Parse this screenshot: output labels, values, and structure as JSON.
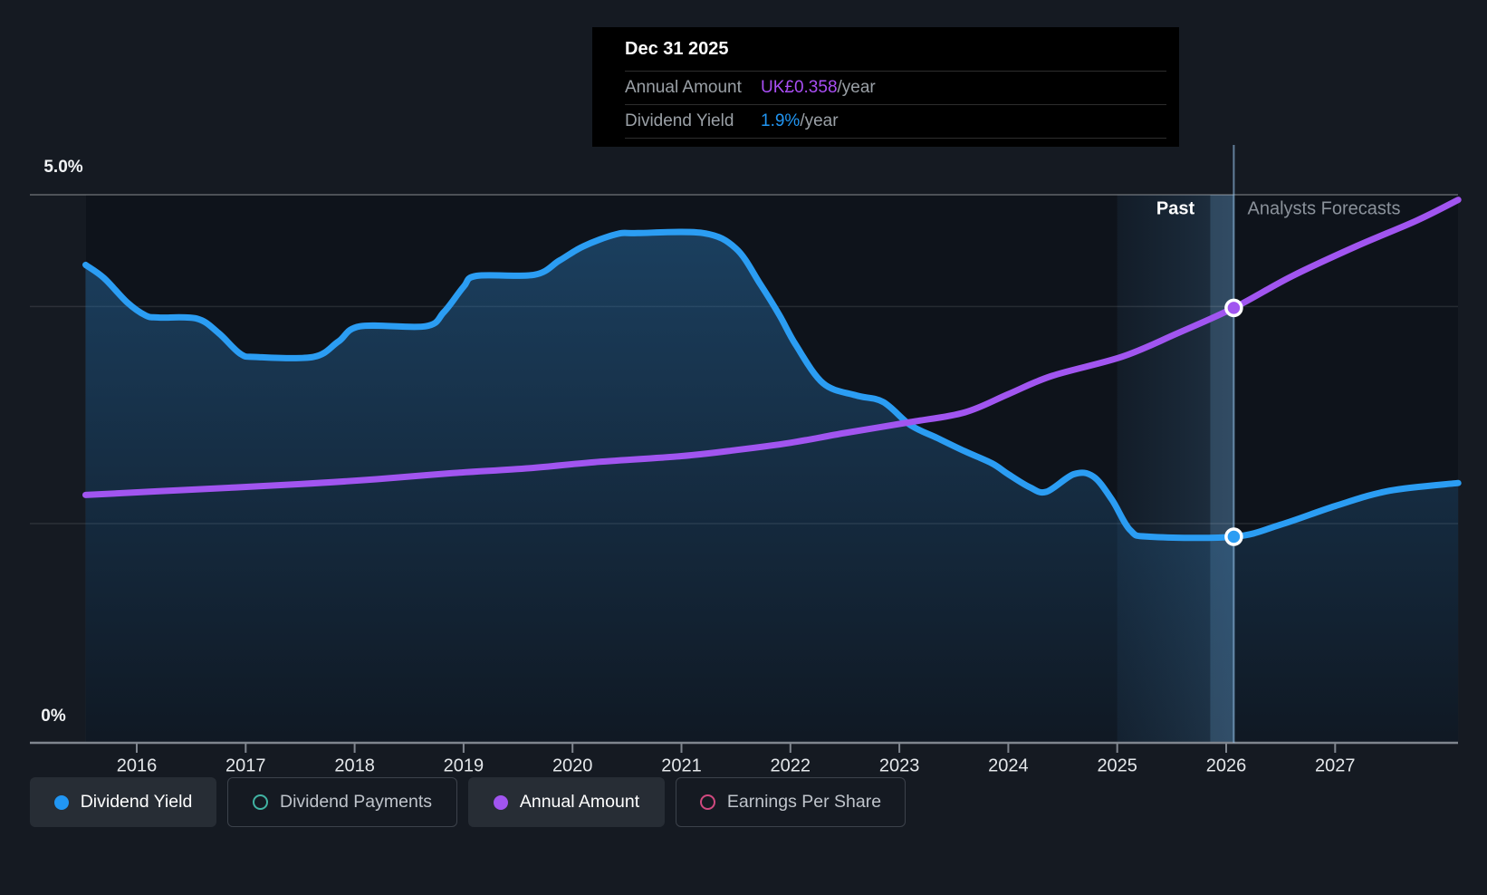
{
  "header": {
    "past_label": "Past",
    "forecast_label": "Analysts Forecasts"
  },
  "y_axis": {
    "top": "5.0%",
    "bottom": "0%"
  },
  "tooltip": {
    "date": "Dec 31 2025",
    "rows": [
      {
        "label": "Annual Amount",
        "value": "UK£0.358",
        "suffix": "/year",
        "color": "#a94ef5"
      },
      {
        "label": "Dividend Yield",
        "value": "1.9%",
        "suffix": "/year",
        "color": "#2196f3"
      }
    ]
  },
  "legend": [
    {
      "label": "Dividend Yield",
      "marker": "filled",
      "color": "#2196f3",
      "active": true
    },
    {
      "label": "Dividend Payments",
      "marker": "outline",
      "color": "#41b3a3",
      "active": false
    },
    {
      "label": "Annual Amount",
      "marker": "filled",
      "color": "#a155f0",
      "active": true
    },
    {
      "label": "Earnings Per Share",
      "marker": "outline",
      "color": "#d0497f",
      "active": false
    }
  ],
  "chart_data": {
    "type": "line",
    "x_ticks": [
      2016,
      2017,
      2018,
      2019,
      2020,
      2021,
      2022,
      2023,
      2024,
      2025,
      2026,
      2027
    ],
    "x_range": [
      2015.53,
      2028.13
    ],
    "ylim_percent": [
      0,
      5
    ],
    "y_axis_labels": [
      "0%",
      "5.0%"
    ],
    "gridlines_percent": [
      5.0,
      3.98,
      2.0
    ],
    "past_band": [
      2025.0,
      2026.07
    ],
    "divider_x": 2026.07,
    "legend_position": "bottom",
    "series": [
      {
        "name": "Dividend Yield",
        "unit": "%",
        "color": "#2b9df3",
        "area": true,
        "points": [
          [
            2015.53,
            4.36
          ],
          [
            2015.7,
            4.24
          ],
          [
            2015.91,
            4.02
          ],
          [
            2016.08,
            3.9
          ],
          [
            2016.2,
            3.88
          ],
          [
            2016.55,
            3.87
          ],
          [
            2016.75,
            3.74
          ],
          [
            2016.95,
            3.55
          ],
          [
            2017.1,
            3.52
          ],
          [
            2017.62,
            3.52
          ],
          [
            2017.85,
            3.66
          ],
          [
            2018.05,
            3.8
          ],
          [
            2018.65,
            3.8
          ],
          [
            2018.82,
            3.93
          ],
          [
            2019.0,
            4.16
          ],
          [
            2019.12,
            4.26
          ],
          [
            2019.65,
            4.27
          ],
          [
            2019.88,
            4.4
          ],
          [
            2020.1,
            4.53
          ],
          [
            2020.4,
            4.64
          ],
          [
            2020.6,
            4.65
          ],
          [
            2021.2,
            4.65
          ],
          [
            2021.5,
            4.51
          ],
          [
            2021.72,
            4.19
          ],
          [
            2021.9,
            3.9
          ],
          [
            2022.05,
            3.63
          ],
          [
            2022.3,
            3.28
          ],
          [
            2022.6,
            3.17
          ],
          [
            2022.85,
            3.11
          ],
          [
            2023.1,
            2.9
          ],
          [
            2023.35,
            2.78
          ],
          [
            2023.6,
            2.66
          ],
          [
            2023.85,
            2.55
          ],
          [
            2024.0,
            2.45
          ],
          [
            2024.2,
            2.33
          ],
          [
            2024.35,
            2.29
          ],
          [
            2024.6,
            2.45
          ],
          [
            2024.78,
            2.43
          ],
          [
            2024.95,
            2.22
          ],
          [
            2025.12,
            1.94
          ],
          [
            2025.3,
            1.88
          ],
          [
            2026.07,
            1.88
          ],
          [
            2026.5,
            1.99
          ],
          [
            2027.0,
            2.16
          ],
          [
            2027.5,
            2.3
          ],
          [
            2028.13,
            2.37
          ]
        ]
      },
      {
        "name": "Annual Amount",
        "unit": "UK£/year",
        "color": "#a155f0",
        "area": false,
        "points": [
          [
            2015.53,
            0.204
          ],
          [
            2016.4,
            0.208
          ],
          [
            2017.5,
            0.213
          ],
          [
            2018.2,
            0.217
          ],
          [
            2018.9,
            0.222
          ],
          [
            2019.6,
            0.226
          ],
          [
            2020.2,
            0.231
          ],
          [
            2021.0,
            0.236
          ],
          [
            2021.5,
            0.241
          ],
          [
            2022.0,
            0.247
          ],
          [
            2022.5,
            0.255
          ],
          [
            2023.1,
            0.264
          ],
          [
            2023.6,
            0.272
          ],
          [
            2024.0,
            0.287
          ],
          [
            2024.4,
            0.302
          ],
          [
            2025.05,
            0.318
          ],
          [
            2025.55,
            0.337
          ],
          [
            2026.07,
            0.358
          ],
          [
            2026.6,
            0.384
          ],
          [
            2027.2,
            0.409
          ],
          [
            2027.75,
            0.43
          ],
          [
            2028.13,
            0.447
          ]
        ]
      }
    ],
    "markers": [
      {
        "series": 0,
        "x": 2026.07,
        "y": 1.88
      },
      {
        "series": 1,
        "x": 2026.07,
        "y": 0.358
      }
    ]
  }
}
